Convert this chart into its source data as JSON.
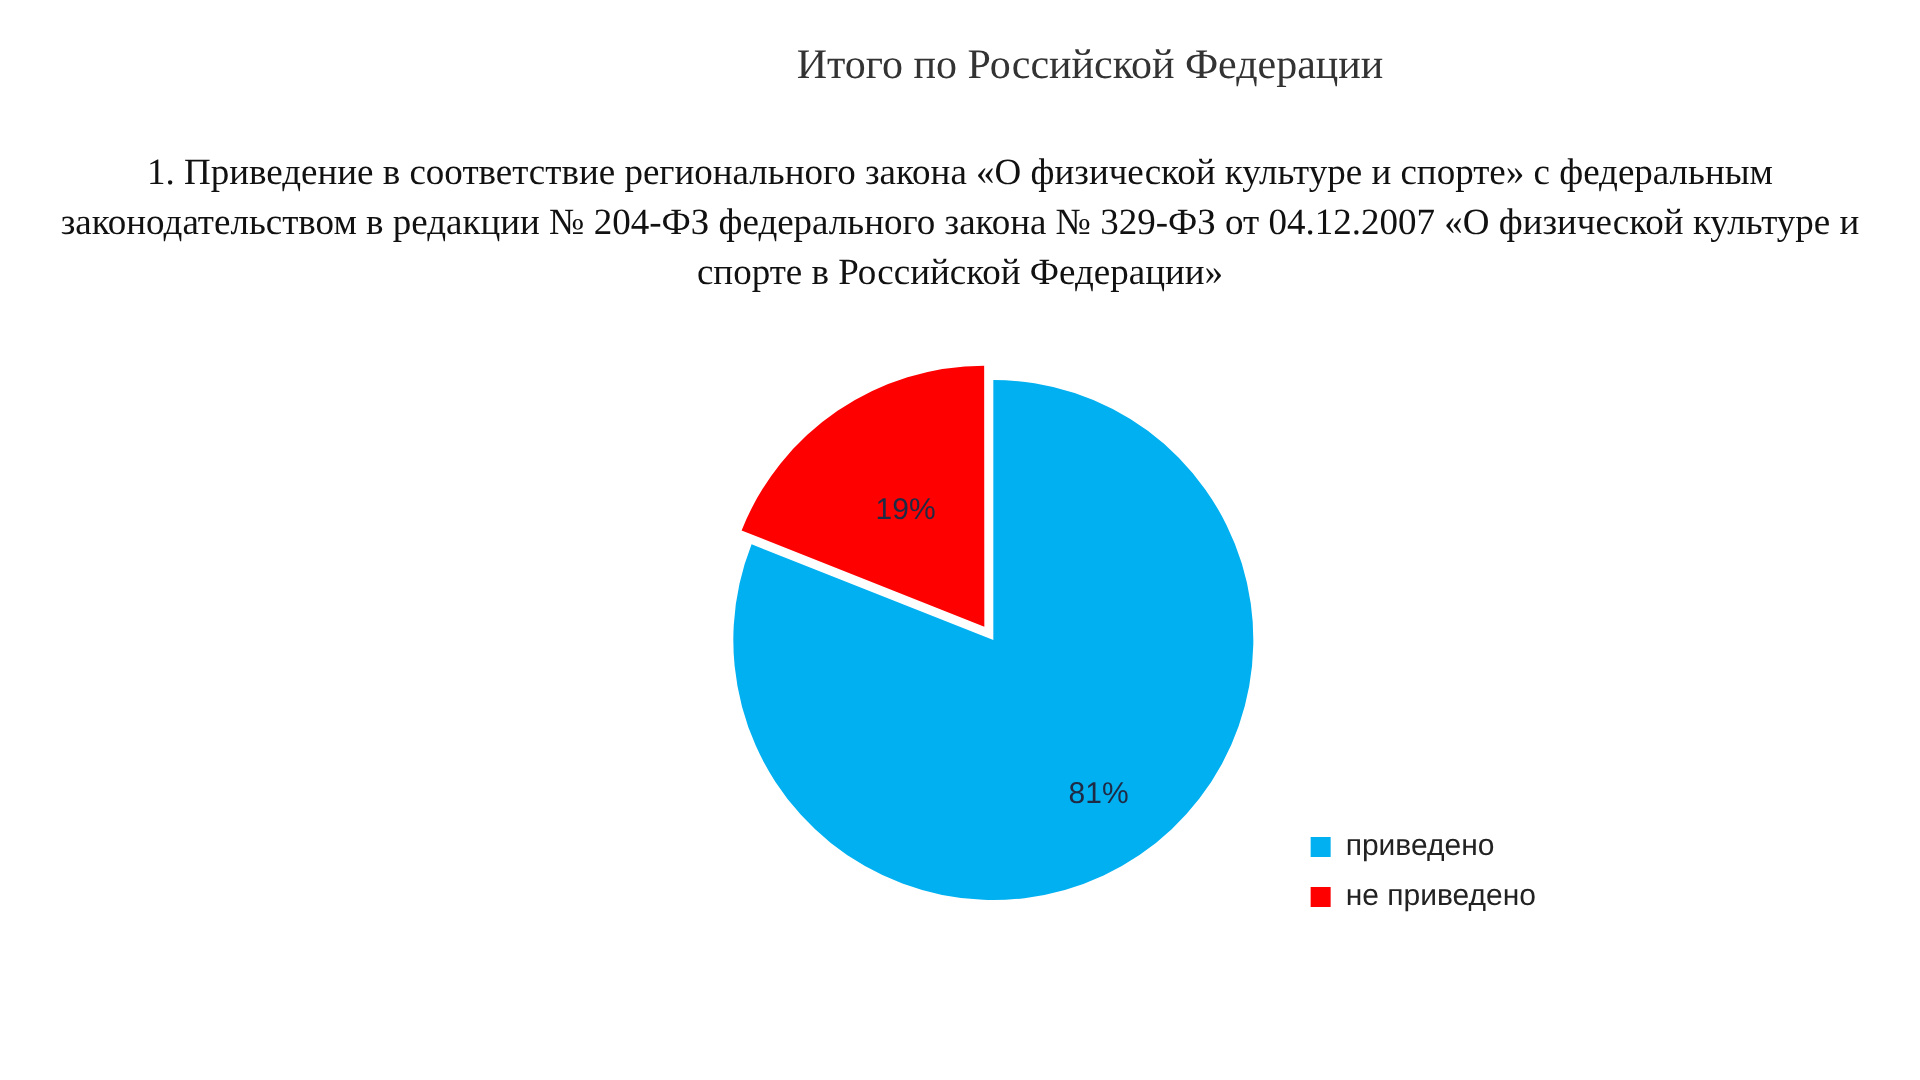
{
  "chart_data": {
    "type": "pie",
    "title": "Итого по Российской Федерации",
    "subtitle": "1. Приведение в соответствие регионального закона «О физической культуре и спорте» с федеральным законодательством в редакции  № 204-ФЗ федерального закона № 329-ФЗ от 04.12.2007 «О физической культуре и спорте в Российской Федерации»",
    "categories": [
      "приведено",
      "не приведено"
    ],
    "values": [
      81,
      19
    ],
    "colors": [
      "#00b0f0",
      "#ff0000"
    ],
    "value_labels": [
      "81%",
      "19%"
    ],
    "legend": "bottom right"
  }
}
